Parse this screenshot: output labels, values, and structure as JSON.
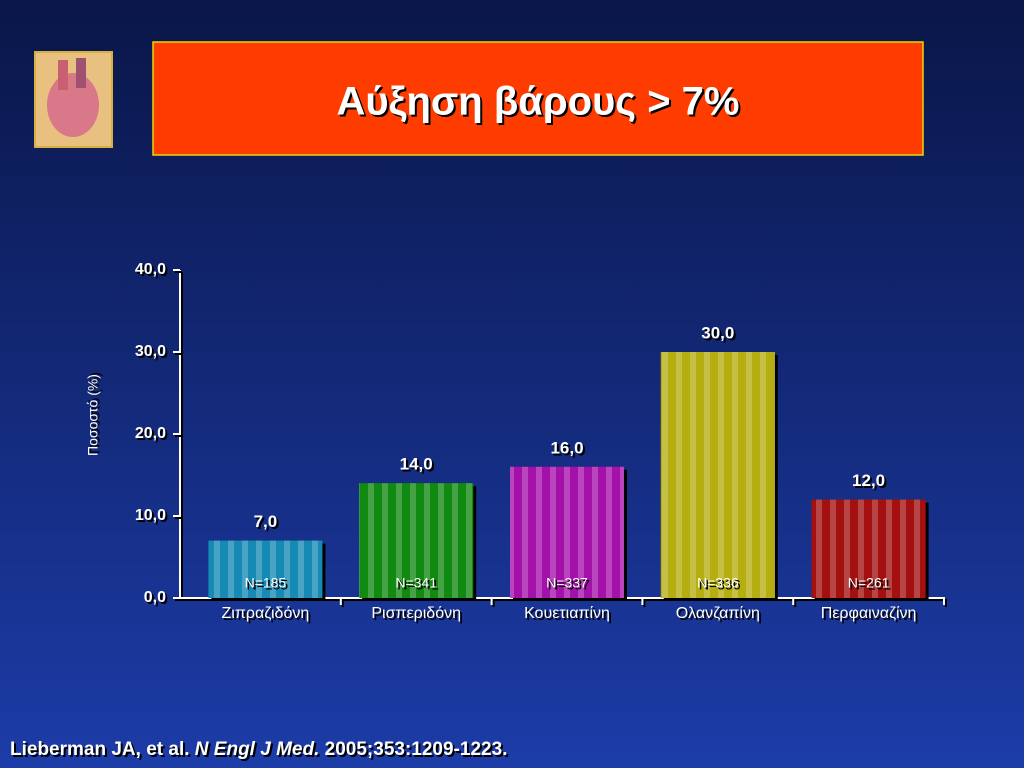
{
  "chart_data": {
    "type": "bar",
    "title": "Αύξηση βάρους > 7%",
    "ylabel": "Ποσοστό (%)",
    "categories": [
      "Ζιπραζιδόνη",
      "Ρισπεριδόνη",
      "Κουετιαπίνη",
      "Ολανζαπίνη",
      "Περφαιναζίνη"
    ],
    "values": [
      7,
      14,
      16,
      30,
      12
    ],
    "value_labels": [
      "7,0",
      "14,0",
      "16,0",
      "30,0",
      "12,0"
    ],
    "sample_labels": [
      "N=185",
      "N=341",
      "N=337",
      "N=336",
      "N=261"
    ],
    "colors": [
      "#1aa8dc",
      "#14a814",
      "#c814d0",
      "#dcd414",
      "#c81414"
    ],
    "ylim": [
      0,
      40
    ],
    "yticks": [
      {
        "value": 0,
        "label": "0,0"
      },
      {
        "value": 10,
        "label": "10,0"
      },
      {
        "value": 20,
        "label": "20,0"
      },
      {
        "value": 30,
        "label": "30,0"
      },
      {
        "value": 40,
        "label": "40,0"
      }
    ]
  },
  "footer": {
    "authors": "Lieberman JA, et al.",
    "journal": "N Engl J Med.",
    "details": "2005;353:1209-1223."
  }
}
